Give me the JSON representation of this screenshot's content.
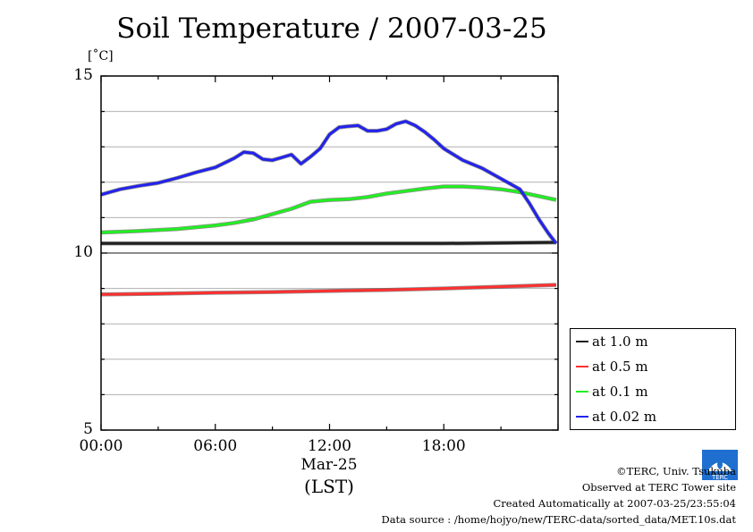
{
  "chart_data": {
    "type": "line",
    "title": "Soil Temperature / 2007-03-25",
    "ylabel": "[˚C]",
    "xlabel": "(LST)",
    "x_date_label": "Mar-25",
    "ylim": [
      5,
      15
    ],
    "y_ticks": [
      "15",
      "10",
      "5"
    ],
    "y_tick_values": [
      15,
      10,
      5
    ],
    "xlim": [
      0,
      24
    ],
    "x_ticks": [
      "00:00",
      "06:00",
      "12:00",
      "18:00"
    ],
    "x_tick_values": [
      0,
      6,
      12,
      18
    ],
    "grid": true,
    "legend_placement": "bottom-right, outside plot",
    "series": [
      {
        "name": "at 1.0 m",
        "color": "#202020",
        "x": [
          0,
          6,
          12,
          18,
          23.9
        ],
        "y": [
          10.27,
          10.27,
          10.27,
          10.27,
          10.3
        ]
      },
      {
        "name": "at 0.5 m",
        "color": "#ff3030",
        "x": [
          0,
          3,
          6,
          9,
          12,
          15,
          18,
          21,
          23.9
        ],
        "y": [
          8.83,
          8.85,
          8.88,
          8.9,
          8.93,
          8.96,
          9.0,
          9.05,
          9.1
        ]
      },
      {
        "name": "at 0.1 m",
        "color": "#22ee22",
        "x": [
          0,
          2,
          4,
          6,
          7,
          8,
          9,
          10,
          11,
          12,
          13,
          14,
          15,
          16,
          17,
          18,
          19,
          20,
          21,
          22,
          23.9
        ],
        "y": [
          10.58,
          10.62,
          10.68,
          10.78,
          10.85,
          10.95,
          11.1,
          11.25,
          11.45,
          11.5,
          11.52,
          11.58,
          11.68,
          11.75,
          11.82,
          11.88,
          11.88,
          11.85,
          11.8,
          11.72,
          11.5
        ]
      },
      {
        "name": "at 0.02 m",
        "color": "#2222ee",
        "x": [
          0,
          1,
          2,
          3,
          4,
          5,
          6,
          7,
          7.5,
          8,
          8.5,
          9,
          9.5,
          10,
          10.5,
          11,
          11.5,
          12,
          12.5,
          13,
          13.5,
          14,
          14.5,
          15,
          15.5,
          16,
          16.5,
          17,
          17.5,
          18,
          19,
          20,
          21,
          22,
          22.5,
          23,
          23.5,
          23.9
        ],
        "y": [
          11.65,
          11.8,
          11.9,
          11.98,
          12.12,
          12.28,
          12.42,
          12.68,
          12.85,
          12.82,
          12.65,
          12.62,
          12.7,
          12.78,
          12.52,
          12.72,
          12.95,
          13.35,
          13.55,
          13.58,
          13.6,
          13.45,
          13.45,
          13.5,
          13.65,
          13.72,
          13.6,
          13.42,
          13.2,
          12.95,
          12.62,
          12.4,
          12.1,
          11.8,
          11.4,
          10.95,
          10.55,
          10.27
        ]
      }
    ]
  },
  "credits": {
    "copyright": "©TERC, Univ. Tsukuba",
    "observed": "Observed at TERC Tower site",
    "created": "Created Automatically at 2007-03-25/23:55:04",
    "source": "Data source : /home/hojyo/new/TERC-data/sorted_data/MET.10s.dat",
    "logo_text": "TERC"
  }
}
